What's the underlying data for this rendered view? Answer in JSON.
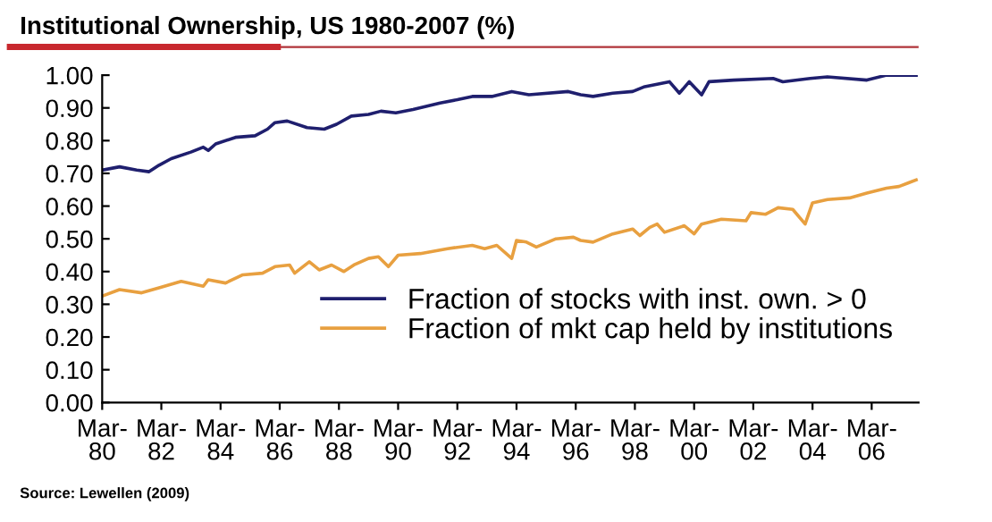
{
  "chart_data": {
    "type": "line",
    "title": "Institutional Ownership, US 1980-2007 (%)",
    "annotations": [
      "Source: Lewellen (2009)"
    ],
    "series": [
      {
        "name": "Fraction of stocks with inst. own. > 0",
        "color": "#1f1f6e",
        "x": [
          "1980-03",
          "1980-10",
          "1981-05",
          "1981-10",
          "1982-02",
          "1982-07",
          "1983-03",
          "1983-08",
          "1983-10",
          "1984-01",
          "1984-09",
          "1985-05",
          "1985-10",
          "1986-01",
          "1986-06",
          "1987-02",
          "1987-09",
          "1988-02",
          "1988-08",
          "1989-03",
          "1989-08",
          "1990-02",
          "1990-09",
          "1991-08",
          "1992-03",
          "1992-09",
          "1993-05",
          "1994-01",
          "1994-08",
          "1995-12",
          "1996-05",
          "1996-10",
          "1997-06",
          "1998-02",
          "1998-07",
          "1999-05",
          "1999-09",
          "2000-01",
          "2000-06",
          "2000-09",
          "2001-07",
          "2002-11",
          "2003-03",
          "2004-02",
          "2004-09",
          "2006-01",
          "2006-09",
          "2007-09"
        ],
        "values": [
          0.71,
          0.72,
          0.71,
          0.705,
          0.725,
          0.745,
          0.765,
          0.78,
          0.77,
          0.79,
          0.81,
          0.815,
          0.835,
          0.855,
          0.86,
          0.84,
          0.835,
          0.85,
          0.875,
          0.88,
          0.89,
          0.885,
          0.895,
          0.915,
          0.925,
          0.935,
          0.935,
          0.95,
          0.94,
          0.95,
          0.94,
          0.935,
          0.945,
          0.95,
          0.965,
          0.98,
          0.945,
          0.98,
          0.94,
          0.98,
          0.985,
          0.99,
          0.98,
          0.99,
          0.995,
          0.985,
          1.0,
          1.0
        ]
      },
      {
        "name": "Fraction of mkt cap held by institutions",
        "color": "#e8a040",
        "x": [
          "1980-03",
          "1980-10",
          "1981-07",
          "1982-02",
          "1982-11",
          "1983-08",
          "1983-10",
          "1984-05",
          "1984-12",
          "1985-08",
          "1986-01",
          "1986-07",
          "1986-09",
          "1987-03",
          "1987-07",
          "1987-12",
          "1988-05",
          "1988-09",
          "1989-03",
          "1989-07",
          "1989-11",
          "1990-03",
          "1990-12",
          "1991-11",
          "1992-09",
          "1993-02",
          "1993-07",
          "1994-01",
          "1994-03",
          "1994-07",
          "1994-11",
          "1995-07",
          "1996-02",
          "1996-05",
          "1996-10",
          "1997-06",
          "1998-02",
          "1998-05",
          "1998-09",
          "1998-12",
          "1999-03",
          "1999-11",
          "2000-03",
          "2000-06",
          "2001-02",
          "2001-12",
          "2002-02",
          "2002-08",
          "2003-01",
          "2003-07",
          "2003-12",
          "2004-03",
          "2004-09",
          "2005-06",
          "2006-01",
          "2006-09",
          "2007-02",
          "2007-09"
        ],
        "values": [
          0.325,
          0.345,
          0.335,
          0.35,
          0.37,
          0.355,
          0.375,
          0.365,
          0.39,
          0.395,
          0.415,
          0.42,
          0.395,
          0.43,
          0.405,
          0.42,
          0.4,
          0.42,
          0.44,
          0.445,
          0.415,
          0.45,
          0.455,
          0.47,
          0.48,
          0.47,
          0.48,
          0.44,
          0.495,
          0.49,
          0.475,
          0.5,
          0.505,
          0.495,
          0.49,
          0.515,
          0.53,
          0.51,
          0.535,
          0.545,
          0.52,
          0.54,
          0.515,
          0.545,
          0.56,
          0.555,
          0.58,
          0.575,
          0.595,
          0.59,
          0.545,
          0.61,
          0.62,
          0.625,
          0.64,
          0.655,
          0.66,
          0.68
        ]
      }
    ],
    "xlim": [
      "1980-03",
      "2007-10"
    ],
    "xticks": [
      {
        "value": "1980-03",
        "label": "Mar-\n80"
      },
      {
        "value": "1982-03",
        "label": "Mar-\n82"
      },
      {
        "value": "1984-03",
        "label": "Mar-\n84"
      },
      {
        "value": "1986-03",
        "label": "Mar-\n86"
      },
      {
        "value": "1988-03",
        "label": "Mar-\n88"
      },
      {
        "value": "1990-03",
        "label": "Mar-\n90"
      },
      {
        "value": "1992-03",
        "label": "Mar-\n92"
      },
      {
        "value": "1994-03",
        "label": "Mar-\n94"
      },
      {
        "value": "1996-03",
        "label": "Mar-\n96"
      },
      {
        "value": "1998-03",
        "label": "Mar-\n98"
      },
      {
        "value": "2000-03",
        "label": "Mar-\n00"
      },
      {
        "value": "2002-03",
        "label": "Mar-\n02"
      },
      {
        "value": "2004-03",
        "label": "Mar-\n04"
      },
      {
        "value": "2006-03",
        "label": "Mar-\n06"
      }
    ],
    "ylim": [
      0,
      1
    ],
    "yticks": [
      {
        "value": 0,
        "label": "0.00"
      },
      {
        "value": 0.1,
        "label": "0.10"
      },
      {
        "value": 0.2,
        "label": "0.20"
      },
      {
        "value": 0.3,
        "label": "0.30"
      },
      {
        "value": 0.4,
        "label": "0.40"
      },
      {
        "value": 0.5,
        "label": "0.50"
      },
      {
        "value": 0.6,
        "label": "0.60"
      },
      {
        "value": 0.7,
        "label": "0.70"
      },
      {
        "value": 0.8,
        "label": "0.80"
      },
      {
        "value": 0.9,
        "label": "0.90"
      },
      {
        "value": 1.0,
        "label": "1.00"
      }
    ],
    "grid": false,
    "legend": "bottom right",
    "marker": "none",
    "line_style": "solid"
  }
}
